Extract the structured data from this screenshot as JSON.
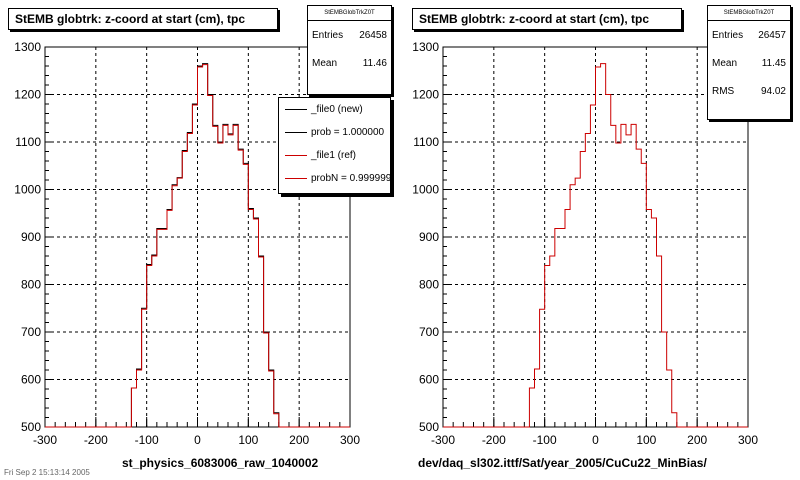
{
  "footer_text": "Fri Sep  2 15:13:14 2005",
  "legend": {
    "entries": [
      {
        "label": "_file0 (new)",
        "color": "#000000"
      },
      {
        "label": "prob = 1.000000",
        "color": "#000000"
      },
      {
        "label": "_file1 (ref)",
        "color": "#cc0000"
      },
      {
        "label": "probN = 0.999999",
        "color": "#cc0000"
      }
    ]
  },
  "chart_data": [
    {
      "type": "histogram",
      "title": "StEMB globtrk: z-coord at start (cm), tpc",
      "xlabel": "st_physics_6083006_raw_1040002",
      "ylabel": "",
      "xlim": [
        -300,
        300
      ],
      "ylim": [
        500,
        1300
      ],
      "xticks": [
        "-300",
        "-200",
        "-100",
        "0",
        "100",
        "200",
        "300"
      ],
      "yticks": [
        "500",
        "600",
        "700",
        "800",
        "900",
        "1000",
        "1100",
        "1200",
        "1300"
      ],
      "grid": true,
      "stats": {
        "name": "StEMBGlobTrkZ0T",
        "rows": [
          {
            "label": "Entries",
            "value": "26458"
          },
          {
            "label": "Mean",
            "value": "11.46"
          }
        ]
      },
      "bin_edges": [
        -130,
        -120,
        -110,
        -100,
        -90,
        -80,
        -70,
        -60,
        -50,
        -40,
        -30,
        -20,
        -10,
        0,
        10,
        20,
        30,
        40,
        50,
        60,
        70,
        80,
        90,
        100,
        110,
        120,
        130,
        140,
        150,
        160,
        170
      ],
      "series": [
        {
          "name": "_file0 (new)",
          "color": "#000000",
          "values": [
            582,
            622,
            750,
            842,
            862,
            918,
            918,
            958,
            1010,
            1025,
            1082,
            1120,
            1180,
            1260,
            1265,
            1200,
            1135,
            1100,
            1137,
            1117,
            1137,
            1085,
            1055,
            960,
            940,
            860,
            700,
            620,
            530,
            500
          ]
        },
        {
          "name": "_file1 (ref)",
          "color": "#cc0000",
          "values": [
            582,
            620,
            748,
            840,
            860,
            916,
            916,
            956,
            1008,
            1024,
            1080,
            1118,
            1178,
            1258,
            1263,
            1198,
            1133,
            1098,
            1135,
            1115,
            1135,
            1083,
            1053,
            958,
            938,
            858,
            698,
            618,
            528,
            500
          ]
        }
      ]
    },
    {
      "type": "histogram",
      "title": "StEMB globtrk: z-coord at start (cm), tpc",
      "xlabel": "dev/daq_sl302.ittf/Sat/year_2005/CuCu22_MinBias/",
      "ylabel": "",
      "xlim": [
        -300,
        300
      ],
      "ylim": [
        500,
        1300
      ],
      "xticks": [
        "-300",
        "-200",
        "-100",
        "0",
        "100",
        "200",
        "300"
      ],
      "yticks": [
        "500",
        "600",
        "700",
        "800",
        "900",
        "1000",
        "1100",
        "1200",
        "1300"
      ],
      "grid": true,
      "stats": {
        "name": "StEMBGlobTrkZ0T",
        "rows": [
          {
            "label": "Entries",
            "value": "26457"
          },
          {
            "label": "Mean",
            "value": "11.45"
          },
          {
            "label": "RMS",
            "value": "94.02"
          }
        ]
      },
      "bin_edges": [
        -130,
        -120,
        -110,
        -100,
        -90,
        -80,
        -70,
        -60,
        -50,
        -40,
        -30,
        -20,
        -10,
        0,
        10,
        20,
        30,
        40,
        50,
        60,
        70,
        80,
        90,
        100,
        110,
        120,
        130,
        140,
        150,
        160,
        170
      ],
      "series": [
        {
          "name": "",
          "color": "#cc0000",
          "values": [
            582,
            622,
            748,
            840,
            860,
            918,
            918,
            958,
            1010,
            1024,
            1080,
            1118,
            1178,
            1258,
            1265,
            1200,
            1135,
            1098,
            1137,
            1115,
            1137,
            1085,
            1055,
            958,
            940,
            860,
            700,
            620,
            530,
            500
          ]
        }
      ]
    }
  ]
}
